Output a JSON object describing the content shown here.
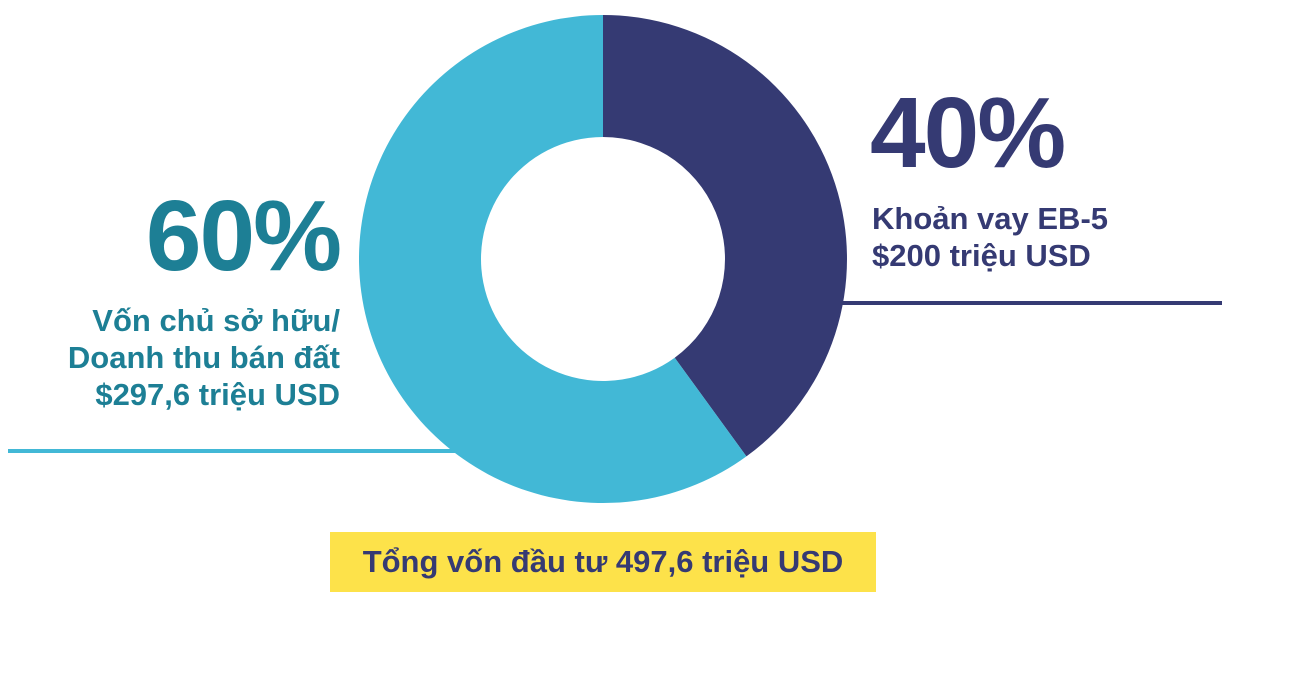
{
  "chart_data": {
    "type": "pie",
    "donut": true,
    "slices": [
      {
        "percent_label": "40%",
        "value": 200,
        "share": 40,
        "lines": [
          "Khoản vay EB-5",
          "$200 triệu USD"
        ],
        "color": "#353a73"
      },
      {
        "percent_label": "60%",
        "value": 297.6,
        "share": 60,
        "lines": [
          "Vốn chủ sở hữu/",
          "Doanh thu bán đất",
          "$297,6 triệu USD"
        ],
        "color": "#42b8d6"
      }
    ],
    "total_label": "Tổng vốn đầu tư 497,6 triệu USD",
    "colors": {
      "left_text": "#1d7f95",
      "right_text": "#353a73",
      "total_box": "#fde24a"
    }
  }
}
